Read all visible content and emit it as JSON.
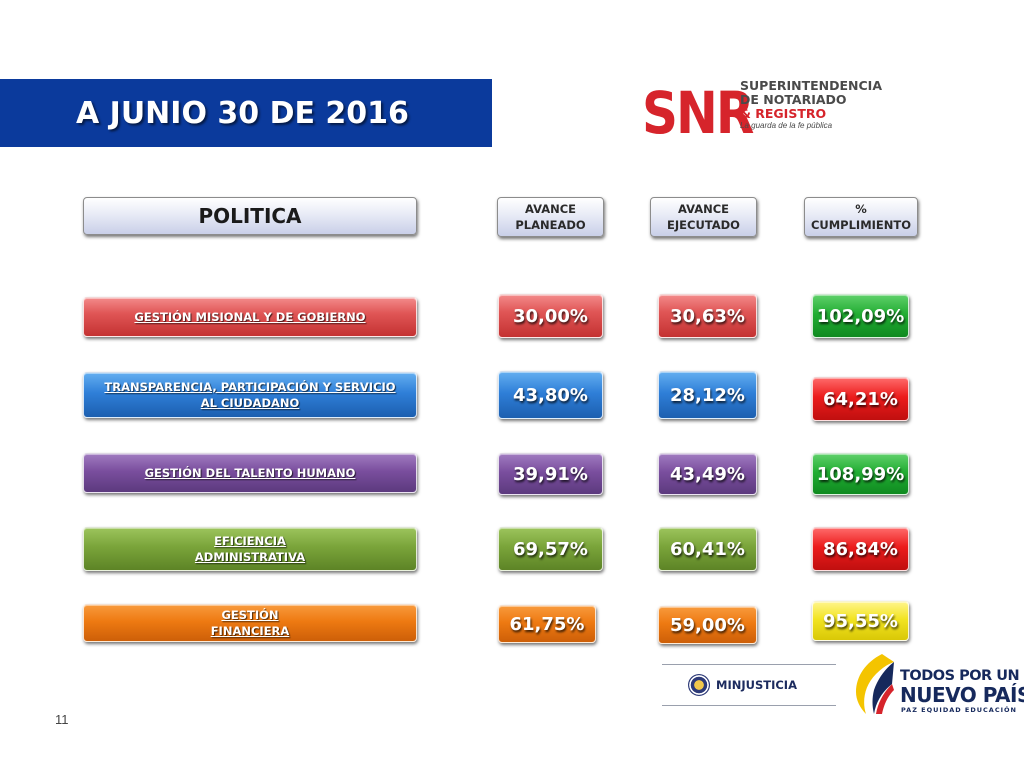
{
  "title": "A JUNIO 30 DE 2016",
  "logo_snr": {
    "mark": "SNR",
    "line1": "SUPERINTENDENCIA",
    "line2": "DE NOTARIADO",
    "line3": "& REGISTRO",
    "tagline": "La guarda de la fe pública"
  },
  "headers": {
    "politica": "POLITICA",
    "planeado": [
      "AVANCE",
      "PLANEADO"
    ],
    "ejecutado": [
      "AVANCE",
      "EJECUTADO"
    ],
    "cumplimiento": [
      "%",
      "CUMPLIMIENTO"
    ]
  },
  "rows": [
    {
      "label": [
        "GESTIÓN MISIONAL Y DE GOBIERNO"
      ],
      "planeado": "30,00%",
      "ejecutado": "30,63%",
      "cumplimiento": "102,09%"
    },
    {
      "label": [
        "TRANSPARENCIA, PARTICIPACIÓN Y SERVICIO",
        "AL CIUDADANO"
      ],
      "planeado": "43,80%",
      "ejecutado": "28,12%",
      "cumplimiento": "64,21%"
    },
    {
      "label": [
        "GESTIÓN DEL TALENTO HUMANO"
      ],
      "planeado": "39,91%",
      "ejecutado": "43,49%",
      "cumplimiento": "108,99%"
    },
    {
      "label": [
        "EFICIENCIA",
        "ADMINISTRATIVA"
      ],
      "planeado": "69,57%",
      "ejecutado": "60,41%",
      "cumplimiento": "86,84%"
    },
    {
      "label": [
        "GESTIÓN",
        "FINANCIERA"
      ],
      "planeado": "61,75%",
      "ejecutado": "59,00%",
      "cumplimiento": "95,55%"
    }
  ],
  "colors": {
    "title_bar": "#0b3a9c",
    "rows": [
      "#d94a4a",
      "#2a78d2",
      "#74489a",
      "#76a038",
      "#ec7510"
    ],
    "cumplimiento": [
      "#22ad33",
      "#ec1c1c",
      "#22ad33",
      "#ec1c1c",
      "#f2e422"
    ]
  },
  "page_number": "11",
  "logo_minjusticia": "MINJUSTICIA",
  "logo_todos": {
    "line1": "TODOS POR UN",
    "line2": "NUEVO PAÍS",
    "line3": "PAZ   EQUIDAD   EDUCACIÓN"
  }
}
